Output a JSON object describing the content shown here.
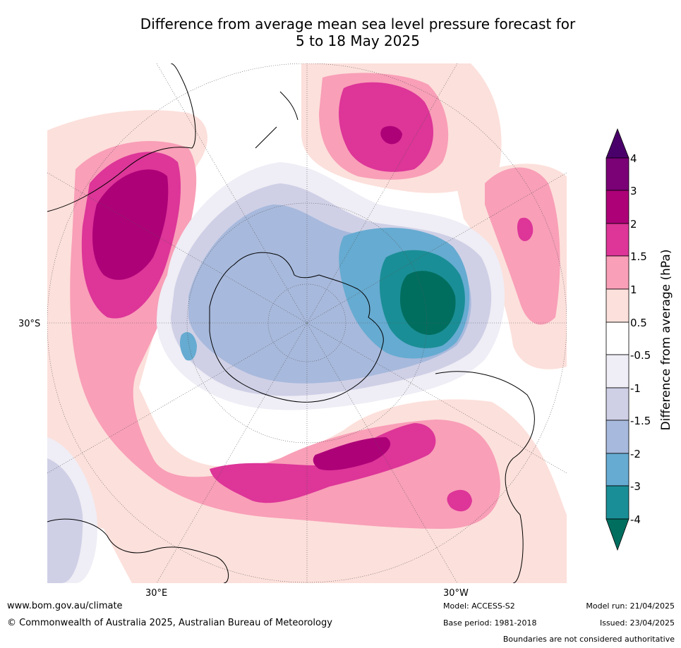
{
  "title": {
    "line1": "Difference from average mean sea level pressure forecast for",
    "line2": "5 to 18 May 2025"
  },
  "map": {
    "projection": "south-polar-stereographic",
    "lat_label": "30°S",
    "lon_labels": [
      "30°E",
      "30°W"
    ]
  },
  "colorbar": {
    "title": "Difference from average (hPa)",
    "tick_labels": [
      "-4",
      "-3",
      "-2",
      "-1.5",
      "-1",
      "-0.5",
      "0.5",
      "1",
      "1.5",
      "2",
      "3",
      "4"
    ],
    "colors": {
      "below_-4": "#006e5f",
      "-4_-3": "#1a8e96",
      "-3_-2": "#66abd1",
      "-2_-1.5": "#a7b9dc",
      "-1.5_-1": "#cfd0e6",
      "-1_-0.5": "#efedf5",
      "-0.5_0.5": "#ffffff",
      "0.5_1": "#fce0db",
      "1_1.5": "#f99fb8",
      "1.5_2": "#dd3598",
      "2_3": "#ad0178",
      "3_4": "#7a0176",
      "above_4": "#4a006a"
    }
  },
  "footer": {
    "website": "www.bom.gov.au/climate",
    "copyright": "© Commonwealth of Australia 2025, Australian Bureau of Meteorology",
    "model": "Model: ACCESS-S2",
    "base_period": "Base period: 1981-2018",
    "model_run": "Model run: 21/04/2025",
    "issued": "Issued: 23/04/2025",
    "disclaimer": "Boundaries are not considered authoritative"
  }
}
